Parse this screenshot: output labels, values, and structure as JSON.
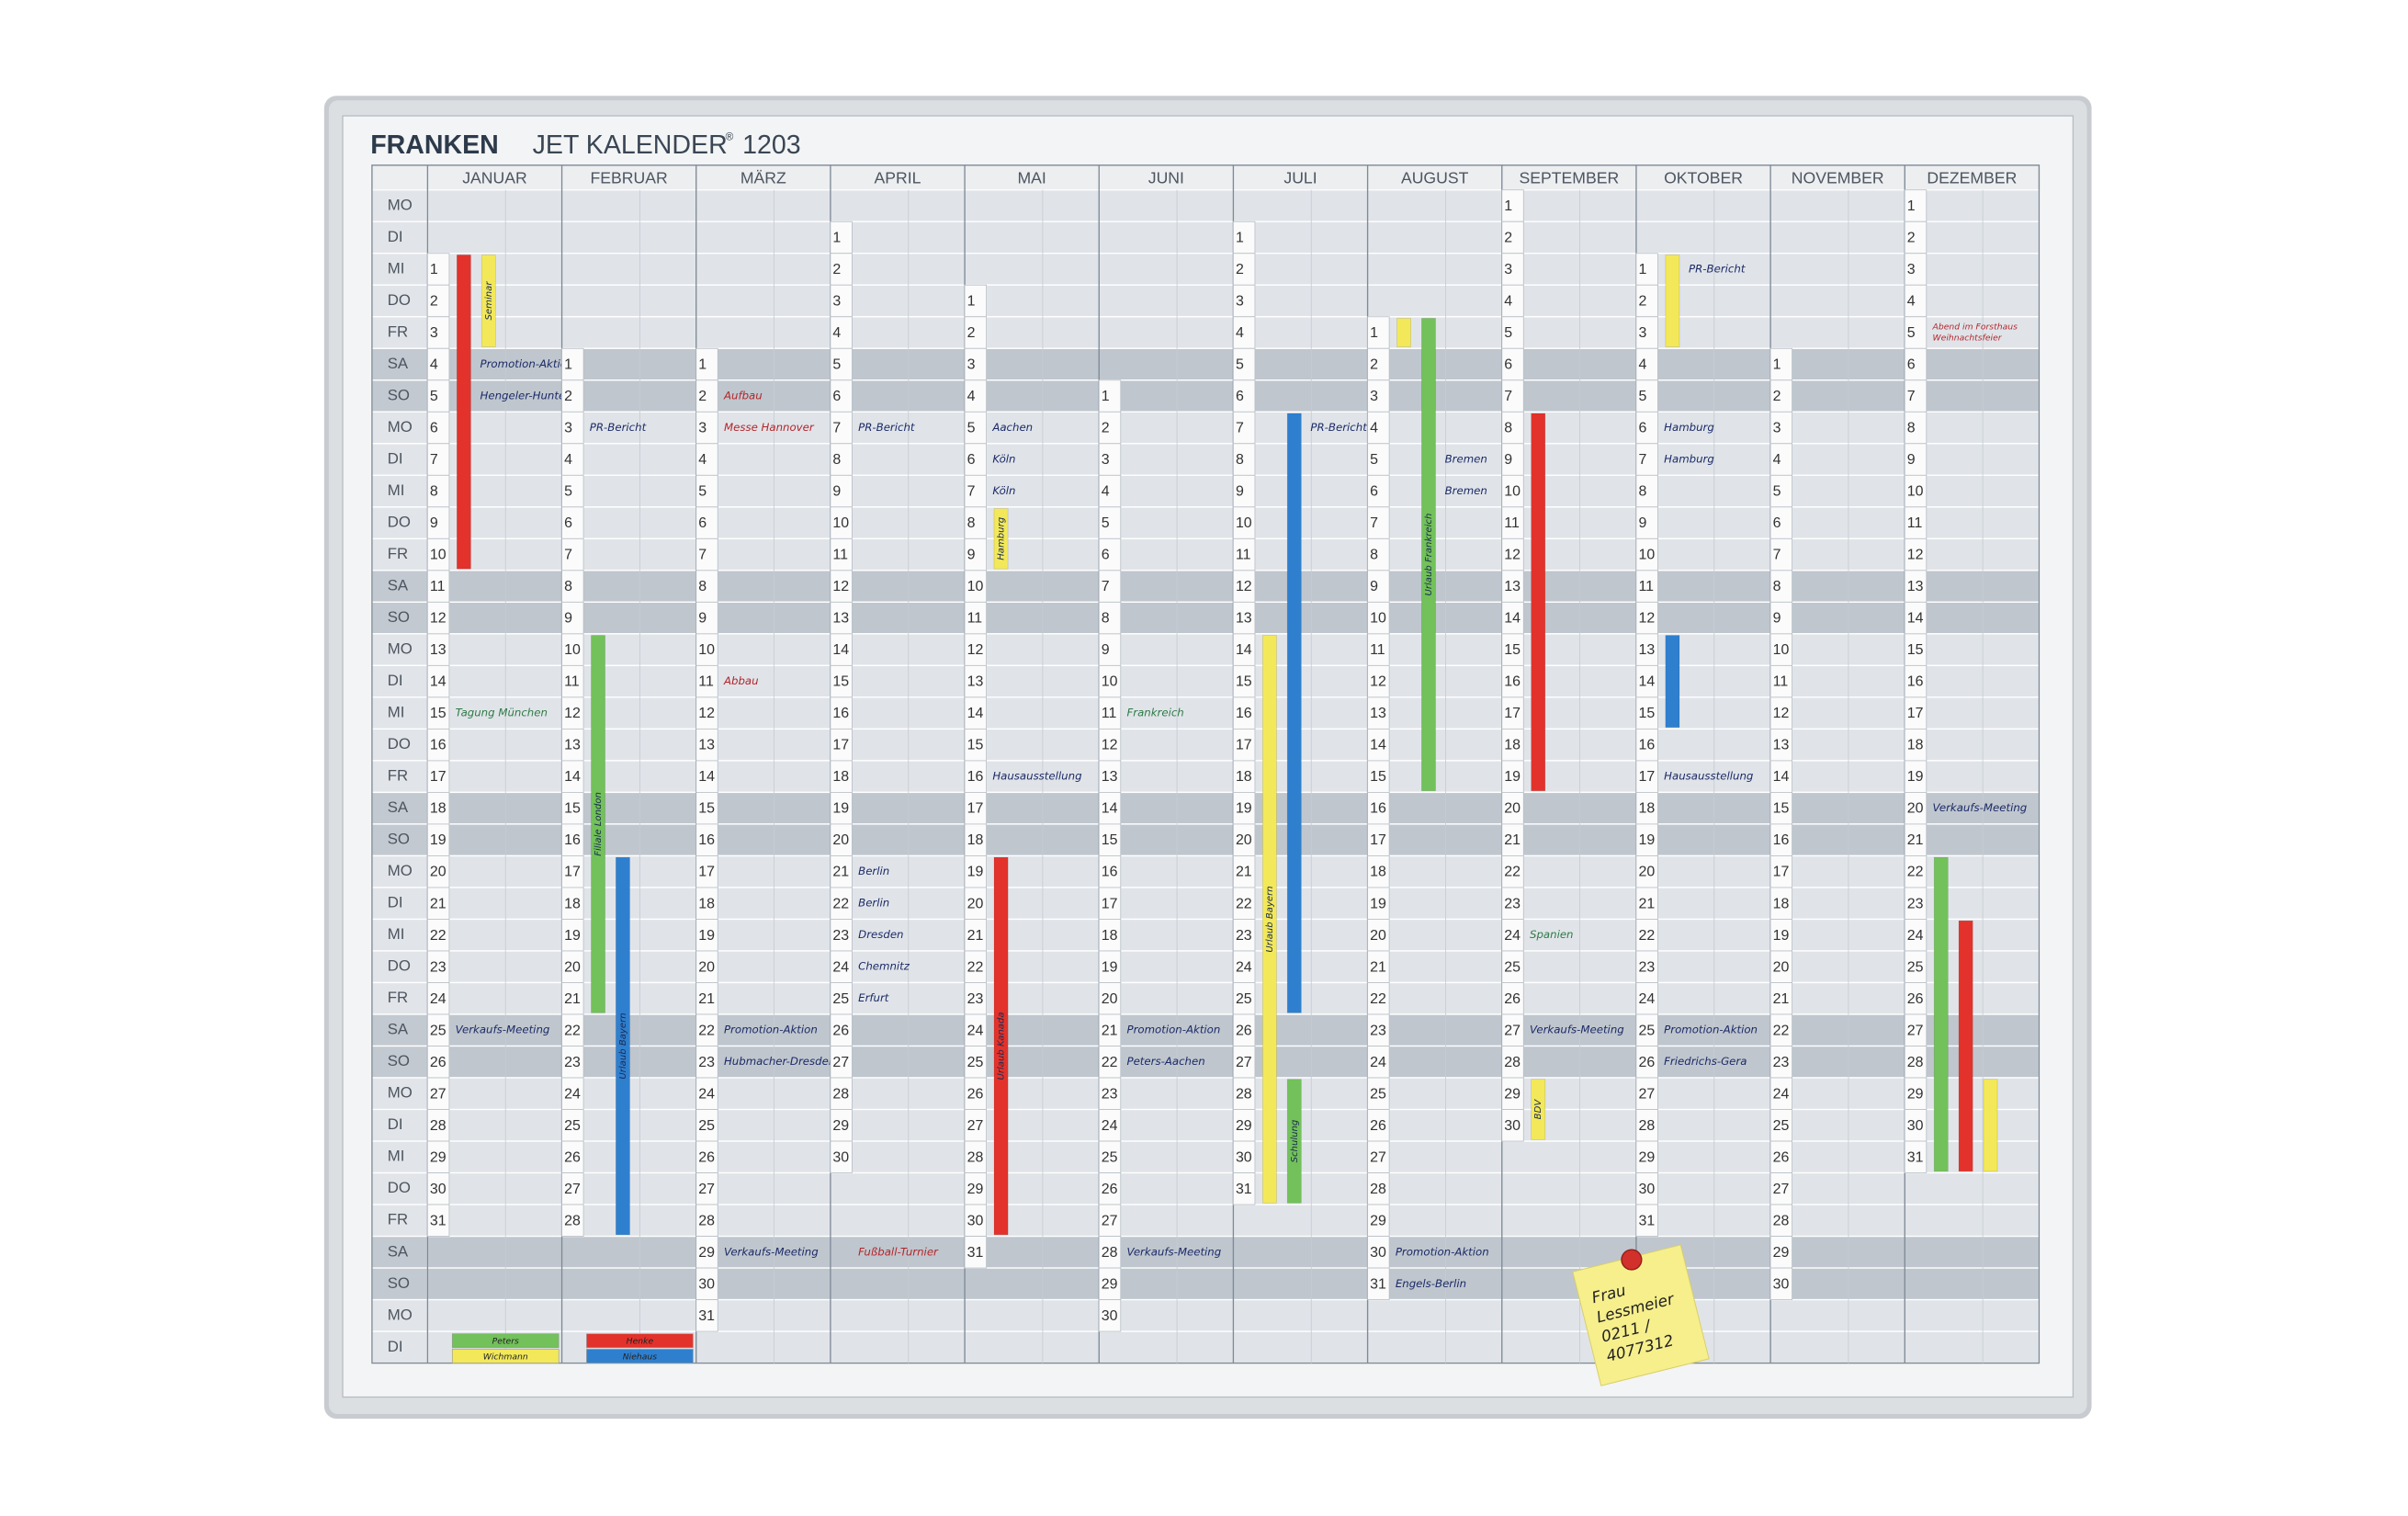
{
  "header": {
    "brand": "FRANKEN",
    "product": "JET KALENDER",
    "mark": "®",
    "model": "1203"
  },
  "weekdays": [
    "MO",
    "DI",
    "MI",
    "DO",
    "FR",
    "SA",
    "SO",
    "MO",
    "DI",
    "MI",
    "DO",
    "FR",
    "SA",
    "SO",
    "MO",
    "DI",
    "MI",
    "DO",
    "FR",
    "SA",
    "SO",
    "MO",
    "DI",
    "MI",
    "DO",
    "FR",
    "SA",
    "SO",
    "MO",
    "DI",
    "MI",
    "DO",
    "FR",
    "SA",
    "SO",
    "MO",
    "DI"
  ],
  "months": [
    {
      "name": "JANUAR",
      "days": [
        null,
        null,
        1,
        2,
        3,
        4,
        5,
        6,
        7,
        8,
        9,
        10,
        11,
        12,
        13,
        14,
        15,
        16,
        17,
        18,
        19,
        20,
        21,
        22,
        23,
        24,
        25,
        26,
        27,
        28,
        29,
        30,
        31,
        null,
        null,
        null,
        null
      ],
      "bars": [
        {
          "from": 1,
          "to": 10,
          "color": "#e3322b"
        },
        {
          "from": 1,
          "to": 3,
          "color": "#f2e85a",
          "label": "Seminar"
        }
      ],
      "notes": [
        {
          "day": 4,
          "text": "Promotion-Aktion",
          "color": "#1b2a66"
        },
        {
          "day": 5,
          "text": "Hengeler-Hunten",
          "color": "#1b2a66"
        },
        {
          "day": 15,
          "text": "Tagung München",
          "color": "#2f7a45"
        },
        {
          "day": 25,
          "text": "Verkaufs-Meeting",
          "color": "#1b2a66"
        }
      ]
    },
    {
      "name": "FEBRUAR",
      "days": [
        null,
        null,
        null,
        null,
        null,
        1,
        2,
        3,
        4,
        5,
        6,
        7,
        8,
        9,
        10,
        11,
        12,
        13,
        14,
        15,
        16,
        17,
        18,
        19,
        20,
        21,
        22,
        23,
        24,
        25,
        26,
        27,
        28,
        null,
        null,
        null,
        null
      ],
      "bars": [
        {
          "from": 10,
          "to": 21,
          "color": "#72c15a",
          "label": "Filiale London"
        },
        {
          "from": 17,
          "to": 28,
          "color": "#2f7fcf",
          "label": "Urlaub Bayern"
        }
      ],
      "notes": [
        {
          "day": 3,
          "text": "PR-Bericht",
          "color": "#1b2a66"
        }
      ]
    },
    {
      "name": "MÄRZ",
      "days": [
        null,
        null,
        null,
        null,
        null,
        1,
        2,
        3,
        4,
        5,
        6,
        7,
        8,
        9,
        10,
        11,
        12,
        13,
        14,
        15,
        16,
        17,
        18,
        19,
        20,
        21,
        22,
        23,
        24,
        25,
        26,
        27,
        28,
        29,
        30,
        31,
        null
      ],
      "bars": [],
      "notes": [
        {
          "day": 2,
          "text": "Aufbau",
          "color": "#b3262b"
        },
        {
          "day": 3,
          "text": "Messe Hannover",
          "color": "#b3262b"
        },
        {
          "day": 11,
          "text": "Abbau",
          "color": "#b3262b"
        },
        {
          "day": 22,
          "text": "Promotion-Aktion",
          "color": "#1b2a66"
        },
        {
          "day": 23,
          "text": "Hubmacher-Dresden",
          "color": "#1b2a66"
        },
        {
          "day": 29,
          "text": "Verkaufs-Meeting",
          "color": "#1b2a66"
        }
      ]
    },
    {
      "name": "APRIL",
      "days": [
        null,
        1,
        2,
        3,
        4,
        5,
        6,
        7,
        8,
        9,
        10,
        11,
        12,
        13,
        14,
        15,
        16,
        17,
        18,
        19,
        20,
        21,
        22,
        23,
        24,
        25,
        26,
        27,
        28,
        29,
        30,
        null,
        null,
        null,
        null,
        null,
        null
      ],
      "bars": [],
      "notes": [
        {
          "day": 7,
          "text": "PR-Bericht",
          "color": "#1b2a66"
        },
        {
          "day": 21,
          "text": "Berlin",
          "color": "#1b2a66"
        },
        {
          "day": 22,
          "text": "Berlin",
          "color": "#1b2a66"
        },
        {
          "day": 23,
          "text": "Dresden",
          "color": "#1b2a66"
        },
        {
          "day": 24,
          "text": "Chemnitz",
          "color": "#1b2a66"
        },
        {
          "day": 25,
          "text": "Erfurt",
          "color": "#1b2a66"
        },
        {
          "text": "Fußball-Turnier",
          "color": "#b3262b"
        }
      ]
    },
    {
      "name": "MAI",
      "days": [
        null,
        null,
        null,
        1,
        2,
        3,
        4,
        5,
        6,
        7,
        8,
        9,
        10,
        11,
        12,
        13,
        14,
        15,
        16,
        17,
        18,
        19,
        20,
        21,
        22,
        23,
        24,
        25,
        26,
        27,
        28,
        29,
        30,
        31,
        null,
        null,
        null
      ],
      "bars": [
        {
          "from": 8,
          "to": 9,
          "color": "#f2e85a",
          "label": "Hamburg"
        },
        {
          "from": 19,
          "to": 30,
          "color": "#e3322b",
          "label": "Urlaub Kanada"
        }
      ],
      "notes": [
        {
          "day": 5,
          "text": "Aachen",
          "color": "#1b2a66"
        },
        {
          "day": 6,
          "text": "Köln",
          "color": "#1b2a66"
        },
        {
          "day": 7,
          "text": "Köln",
          "color": "#1b2a66"
        },
        {
          "day": 16,
          "text": "Hausausstellung",
          "color": "#1b2a66"
        }
      ]
    },
    {
      "name": "JUNI",
      "days": [
        null,
        null,
        null,
        null,
        null,
        null,
        1,
        2,
        3,
        4,
        5,
        6,
        7,
        8,
        9,
        10,
        11,
        12,
        13,
        14,
        15,
        16,
        17,
        18,
        19,
        20,
        21,
        22,
        23,
        24,
        25,
        26,
        27,
        28,
        29,
        30,
        null
      ],
      "bars": [],
      "notes": [
        {
          "day": 11,
          "text": "Frankreich",
          "color": "#2f7a45"
        },
        {
          "day": 21,
          "text": "Promotion-Aktion",
          "color": "#1b2a66"
        },
        {
          "day": 22,
          "text": "Peters-Aachen",
          "color": "#1b2a66"
        },
        {
          "day": 28,
          "text": "Verkaufs-Meeting",
          "color": "#1b2a66"
        }
      ]
    },
    {
      "name": "JULI",
      "days": [
        null,
        1,
        2,
        3,
        4,
        5,
        6,
        7,
        8,
        9,
        10,
        11,
        12,
        13,
        14,
        15,
        16,
        17,
        18,
        19,
        20,
        21,
        22,
        23,
        24,
        25,
        26,
        27,
        28,
        29,
        30,
        31,
        null,
        null,
        null,
        null,
        null
      ],
      "bars": [
        {
          "from": 14,
          "to": 31,
          "color": "#f2e85a",
          "label": "Urlaub Bayern"
        },
        {
          "from": 7,
          "to": 25,
          "color": "#2f7fcf"
        },
        {
          "from": 28,
          "to": 31,
          "color": "#72c15a",
          "label": "Schulung"
        }
      ],
      "notes": [
        {
          "day": 7,
          "text": "PR-Bericht",
          "color": "#1b2a66"
        }
      ]
    },
    {
      "name": "AUGUST",
      "days": [
        null,
        null,
        null,
        null,
        1,
        2,
        3,
        4,
        5,
        6,
        7,
        8,
        9,
        10,
        11,
        12,
        13,
        14,
        15,
        16,
        17,
        18,
        19,
        20,
        21,
        22,
        23,
        24,
        25,
        26,
        27,
        28,
        29,
        30,
        31,
        null,
        null
      ],
      "bars": [
        {
          "from": 1,
          "to": 1,
          "color": "#f2e85a"
        },
        {
          "from": 1,
          "to": 15,
          "color": "#72c15a",
          "label": "Urlaub Frankreich"
        }
      ],
      "notes": [
        {
          "day": 5,
          "text": "Bremen",
          "color": "#1b2a66"
        },
        {
          "day": 6,
          "text": "Bremen",
          "color": "#1b2a66"
        },
        {
          "day": 30,
          "text": "Promotion-Aktion",
          "color": "#1b2a66"
        },
        {
          "day": 31,
          "text": "Engels-Berlin",
          "color": "#1b2a66"
        }
      ]
    },
    {
      "name": "SEPTEMBER",
      "days": [
        1,
        2,
        3,
        4,
        5,
        6,
        7,
        8,
        9,
        10,
        11,
        12,
        13,
        14,
        15,
        16,
        17,
        18,
        19,
        20,
        21,
        22,
        23,
        24,
        25,
        26,
        27,
        28,
        29,
        30,
        null,
        null,
        null,
        null,
        null,
        null,
        null
      ],
      "bars": [
        {
          "from": 8,
          "to": 19,
          "color": "#e3322b"
        },
        {
          "from": 29,
          "to": 30,
          "color": "#f2e85a",
          "label": "BDV"
        }
      ],
      "notes": [
        {
          "day": 24,
          "text": "Spanien",
          "color": "#2f7a45"
        },
        {
          "day": 27,
          "text": "Verkaufs-Meeting",
          "color": "#1b2a66"
        }
      ]
    },
    {
      "name": "OKTOBER",
      "days": [
        null,
        null,
        1,
        2,
        3,
        4,
        5,
        6,
        7,
        8,
        9,
        10,
        11,
        12,
        13,
        14,
        15,
        16,
        17,
        18,
        19,
        20,
        21,
        22,
        23,
        24,
        25,
        26,
        27,
        28,
        29,
        30,
        31,
        null,
        null,
        null,
        null
      ],
      "bars": [
        {
          "from": 1,
          "to": 3,
          "color": "#f2e85a"
        },
        {
          "from": 13,
          "to": 15,
          "color": "#2f7fcf"
        }
      ],
      "notes": [
        {
          "day": 1,
          "text": "PR-Bericht",
          "color": "#1b2a66"
        },
        {
          "day": 6,
          "text": "Hamburg",
          "color": "#1b2a66"
        },
        {
          "day": 7,
          "text": "Hamburg",
          "color": "#1b2a66"
        },
        {
          "day": 17,
          "text": "Hausausstellung",
          "color": "#1b2a66"
        },
        {
          "day": 25,
          "text": "Promotion-Aktion",
          "color": "#1b2a66"
        },
        {
          "day": 26,
          "text": "Friedrichs-Gera",
          "color": "#1b2a66"
        }
      ]
    },
    {
      "name": "NOVEMBER",
      "days": [
        null,
        null,
        null,
        null,
        null,
        1,
        2,
        3,
        4,
        5,
        6,
        7,
        8,
        9,
        10,
        11,
        12,
        13,
        14,
        15,
        16,
        17,
        18,
        19,
        20,
        21,
        22,
        23,
        24,
        25,
        26,
        27,
        28,
        29,
        30,
        null,
        null
      ],
      "bars": [],
      "notes": []
    },
    {
      "name": "DEZEMBER",
      "days": [
        1,
        2,
        3,
        4,
        5,
        6,
        7,
        8,
        9,
        10,
        11,
        12,
        13,
        14,
        15,
        16,
        17,
        18,
        19,
        20,
        21,
        22,
        23,
        24,
        25,
        26,
        27,
        28,
        29,
        30,
        31,
        null,
        null,
        null,
        null,
        null,
        null
      ],
      "bars": [
        {
          "from": 22,
          "to": 31,
          "color": "#72c15a"
        },
        {
          "from": 24,
          "to": 31,
          "color": "#e3322b"
        },
        {
          "from": 29,
          "to": 31,
          "color": "#f2e85a"
        }
      ],
      "notes": [
        {
          "day": 5,
          "text": "Abend im Forsthaus",
          "color": "#b3262b"
        },
        {
          "day": 5,
          "text": "Weihnachtsfeier",
          "color": "#b3262b"
        },
        {
          "day": 20,
          "text": "Verkaufs-Meeting",
          "color": "#1b2a66"
        }
      ]
    }
  ],
  "legend": [
    {
      "text": "Peters",
      "color": "#72c15a"
    },
    {
      "text": "Wichmann",
      "color": "#f2e85a"
    },
    {
      "text": "Henke",
      "color": "#e3322b"
    },
    {
      "text": "Niehaus",
      "color": "#2f7fcf"
    }
  ],
  "postit": {
    "lines": [
      "Frau",
      "Lessmeier",
      "0211 /",
      "4077312"
    ]
  }
}
